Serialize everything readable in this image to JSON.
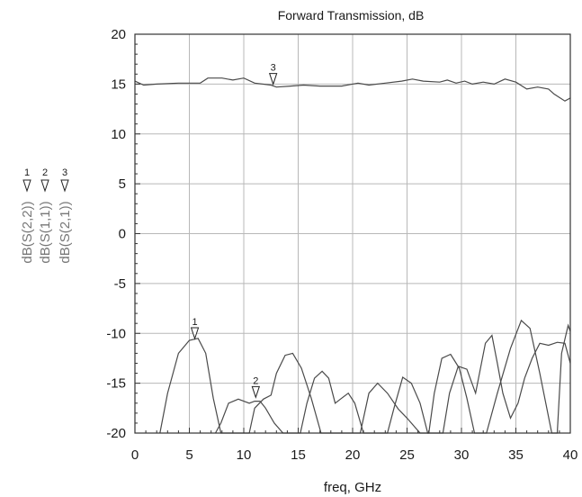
{
  "chart_data": {
    "type": "line",
    "title": "Forward Transmission, dB",
    "xlabel": "freq, GHz",
    "ylabel_lines": [
      "dB(S(2,2))",
      "dB(S(1,1))",
      "dB(S(2,1))"
    ],
    "ylabel_markers": [
      "1",
      "2",
      "3"
    ],
    "xlim": [
      0,
      40
    ],
    "ylim": [
      -20,
      20
    ],
    "xticks": [
      0,
      5,
      10,
      15,
      20,
      25,
      30,
      35,
      40
    ],
    "yticks": [
      -20,
      -15,
      -10,
      -5,
      0,
      5,
      10,
      15,
      20
    ],
    "grid": true,
    "series": [
      {
        "points": [
          [
            0,
            15.3
          ],
          [
            0.8,
            14.9
          ],
          [
            2,
            15
          ],
          [
            4,
            15.1
          ],
          [
            6,
            15.1
          ],
          [
            6.7,
            15.6
          ],
          [
            8,
            15.6
          ],
          [
            9,
            15.4
          ],
          [
            10,
            15.6
          ],
          [
            11,
            15.1
          ],
          [
            12.5,
            14.9
          ],
          [
            13,
            14.7
          ],
          [
            14.3,
            14.8
          ],
          [
            15.5,
            14.9
          ],
          [
            17,
            14.8
          ],
          [
            19,
            14.8
          ],
          [
            20.5,
            15.1
          ],
          [
            21.5,
            14.9
          ],
          [
            23,
            15.1
          ],
          [
            24.5,
            15.3
          ],
          [
            25.5,
            15.5
          ],
          [
            26.5,
            15.3
          ],
          [
            28,
            15.2
          ],
          [
            28.7,
            15.4
          ],
          [
            29.5,
            15.1
          ],
          [
            30.3,
            15.3
          ],
          [
            31,
            15.0
          ],
          [
            32,
            15.2
          ],
          [
            33,
            15.0
          ],
          [
            34,
            15.5
          ],
          [
            35,
            15.2
          ],
          [
            36,
            14.5
          ],
          [
            37,
            14.7
          ],
          [
            38,
            14.5
          ],
          [
            38.5,
            14.0
          ],
          [
            39.5,
            13.3
          ],
          [
            40,
            13.6
          ]
        ]
      },
      {
        "points": [
          [
            2.3,
            -20
          ],
          [
            3,
            -16
          ],
          [
            4,
            -12
          ],
          [
            5,
            -10.7
          ],
          [
            5.8,
            -10.5
          ],
          [
            6.5,
            -12
          ],
          [
            7.2,
            -16.5
          ],
          [
            7.9,
            -20
          ],
          [
            10.5,
            -20
          ],
          [
            11,
            -17.5
          ],
          [
            11.8,
            -16.6
          ],
          [
            12.5,
            -16.2
          ],
          [
            13,
            -14
          ],
          [
            13.8,
            -12.2
          ],
          [
            14.5,
            -12.0
          ],
          [
            15.3,
            -13.5
          ],
          [
            16.2,
            -16.5
          ],
          [
            17.1,
            -20
          ],
          [
            20.7,
            -20
          ],
          [
            21.5,
            -16
          ],
          [
            22.3,
            -15.0
          ],
          [
            23.2,
            -16
          ],
          [
            24.2,
            -17.6
          ],
          [
            25,
            -18.5
          ],
          [
            26.2,
            -20
          ],
          [
            27,
            -20
          ],
          [
            27.5,
            -16
          ],
          [
            28.2,
            -12.5
          ],
          [
            29,
            -12.1
          ],
          [
            29.8,
            -13.5
          ],
          [
            30.5,
            -16.5
          ],
          [
            31.2,
            -20
          ],
          [
            32.3,
            -20
          ],
          [
            33.3,
            -16
          ],
          [
            34.5,
            -11.5
          ],
          [
            35.5,
            -8.7
          ],
          [
            36.3,
            -9.5
          ],
          [
            37.2,
            -14
          ],
          [
            38.3,
            -20
          ],
          [
            38.8,
            -20
          ],
          [
            39.2,
            -12
          ],
          [
            39.8,
            -9.2
          ],
          [
            40,
            -9.8
          ]
        ]
      },
      {
        "points": [
          [
            7.4,
            -20
          ],
          [
            7.9,
            -19
          ],
          [
            8.6,
            -17
          ],
          [
            9.5,
            -16.6
          ],
          [
            10,
            -16.8
          ],
          [
            10.5,
            -17.0
          ],
          [
            11,
            -16.8
          ],
          [
            11.5,
            -16.8
          ],
          [
            12,
            -17.5
          ],
          [
            12.8,
            -19
          ],
          [
            13.6,
            -20
          ],
          [
            15.2,
            -20
          ],
          [
            15.8,
            -17
          ],
          [
            16.5,
            -14.5
          ],
          [
            17.2,
            -13.8
          ],
          [
            17.8,
            -14.5
          ],
          [
            18.4,
            -17
          ],
          [
            19,
            -16.5
          ],
          [
            19.6,
            -16
          ],
          [
            20.2,
            -17
          ],
          [
            21,
            -20
          ],
          [
            23.2,
            -20
          ],
          [
            23.8,
            -17.5
          ],
          [
            24.6,
            -14.4
          ],
          [
            25.4,
            -15.0
          ],
          [
            26.2,
            -17
          ],
          [
            26.9,
            -20
          ],
          [
            28.3,
            -20
          ],
          [
            28.9,
            -16
          ],
          [
            29.7,
            -13.3
          ],
          [
            30.5,
            -13.6
          ],
          [
            31.3,
            -16
          ],
          [
            32.2,
            -11
          ],
          [
            32.8,
            -10.2
          ],
          [
            33.3,
            -13
          ],
          [
            33.8,
            -16
          ],
          [
            34.5,
            -18.5
          ],
          [
            35.2,
            -17
          ],
          [
            35.8,
            -14.5
          ],
          [
            36.5,
            -12.5
          ],
          [
            37.2,
            -11
          ],
          [
            38,
            -11.2
          ],
          [
            38.8,
            -10.9
          ],
          [
            39.5,
            -11
          ],
          [
            40,
            -13
          ]
        ]
      }
    ],
    "markers": [
      {
        "label": "1",
        "x": 5.5,
        "y": -10.7
      },
      {
        "label": "2",
        "x": 11.1,
        "y": -16.6
      },
      {
        "label": "3",
        "x": 12.7,
        "y": 14.8
      }
    ]
  }
}
